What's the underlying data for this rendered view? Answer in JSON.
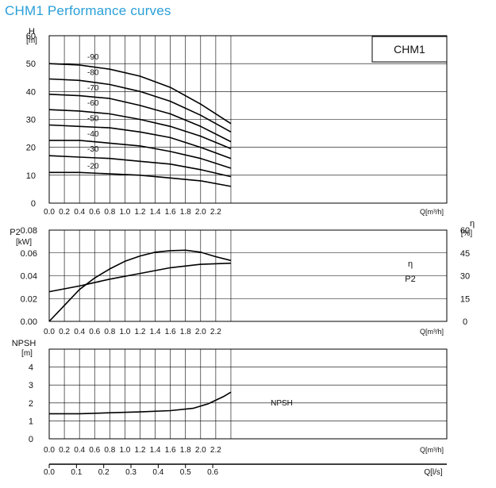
{
  "title": "CHM1 Performance curves",
  "model_label": "CHM1",
  "colors": {
    "title": "#2a9fd8",
    "curve": "#000000",
    "grid": "#000000",
    "axis": "#000000"
  },
  "chart_data": [
    {
      "type": "line",
      "name": "head",
      "ylabel": "H",
      "yunit": "[m]",
      "xlabel": "Q[m³/h]",
      "xlim": [
        0,
        2.4
      ],
      "ylim": [
        0,
        60
      ],
      "x_ticks": [
        "0.0",
        "0.2",
        "0.4",
        "0.6",
        "0.8",
        "1.0",
        "1.2",
        "1.4",
        "1.6",
        "1.8",
        "2.0",
        "2.2"
      ],
      "y_ticks": [
        "0",
        "10",
        "20",
        "30",
        "40",
        "50",
        "60"
      ],
      "grid": true,
      "series": [
        {
          "name": "-90",
          "x": [
            0,
            0.4,
            0.8,
            1.2,
            1.6,
            2.0,
            2.4
          ],
          "y": [
            50,
            49.5,
            48,
            45.5,
            41.5,
            35.5,
            28.5
          ]
        },
        {
          "name": "-80",
          "x": [
            0,
            0.4,
            0.8,
            1.2,
            1.6,
            2.0,
            2.4
          ],
          "y": [
            44.5,
            44,
            42.5,
            40,
            36.5,
            31.5,
            25.5
          ]
        },
        {
          "name": "-70",
          "x": [
            0,
            0.4,
            0.8,
            1.2,
            1.6,
            2.0,
            2.4
          ],
          "y": [
            39,
            38.5,
            37.5,
            35,
            32,
            27.5,
            22
          ]
        },
        {
          "name": "-60",
          "x": [
            0,
            0.4,
            0.8,
            1.2,
            1.6,
            2.0,
            2.4
          ],
          "y": [
            33.5,
            33,
            32,
            30,
            27.5,
            24,
            19.5
          ]
        },
        {
          "name": "-50",
          "x": [
            0,
            0.4,
            0.8,
            1.2,
            1.6,
            2.0,
            2.4
          ],
          "y": [
            28,
            27.5,
            27,
            25.5,
            23.5,
            20,
            16
          ]
        },
        {
          "name": "-40",
          "x": [
            0,
            0.4,
            0.8,
            1.2,
            1.6,
            2.0,
            2.4
          ],
          "y": [
            22.5,
            22.5,
            21.5,
            20.5,
            18.5,
            16,
            12.5
          ]
        },
        {
          "name": "-30",
          "x": [
            0,
            0.4,
            0.8,
            1.2,
            1.6,
            2.0,
            2.4
          ],
          "y": [
            17,
            16.5,
            16,
            15,
            14,
            12,
            9.5
          ]
        },
        {
          "name": "-20",
          "x": [
            0,
            0.4,
            0.8,
            1.2,
            1.6,
            2.0,
            2.4
          ],
          "y": [
            11,
            11,
            10.5,
            10,
            9,
            8,
            6
          ]
        }
      ]
    },
    {
      "type": "line",
      "name": "power-efficiency",
      "ylabel": "P2",
      "yunit": "[kW]",
      "y2label": "η",
      "y2unit": "[%]",
      "xlabel": "Q[m³/h]",
      "xlim": [
        0,
        2.4
      ],
      "ylim": [
        0,
        0.08
      ],
      "y2lim": [
        0,
        60
      ],
      "x_ticks": [
        "0.0",
        "0.2",
        "0.4",
        "0.6",
        "0.8",
        "1.0",
        "1.2",
        "1.4",
        "1.6",
        "1.8",
        "2.0",
        "2.2"
      ],
      "y_ticks": [
        "0.00",
        "0.02",
        "0.04",
        "0.06",
        "0.08"
      ],
      "y2_ticks": [
        "0",
        "15",
        "30",
        "45",
        "60"
      ],
      "grid": true,
      "series": [
        {
          "name": "P2",
          "axis": "left",
          "x": [
            0,
            0.4,
            0.8,
            1.2,
            1.6,
            2.0,
            2.4
          ],
          "y": [
            0.026,
            0.031,
            0.037,
            0.042,
            0.047,
            0.05,
            0.051
          ]
        },
        {
          "name": "η",
          "axis": "right",
          "x": [
            0,
            0.2,
            0.4,
            0.6,
            0.8,
            1.0,
            1.2,
            1.4,
            1.6,
            1.8,
            2.0,
            2.2,
            2.4
          ],
          "y": [
            0,
            10.5,
            21,
            28.5,
            34.5,
            39.5,
            43,
            45.5,
            46.5,
            46.8,
            45.5,
            42.5,
            40
          ]
        }
      ]
    },
    {
      "type": "line",
      "name": "npsh",
      "ylabel": "NPSH",
      "yunit": "[m]",
      "xlabel": "Q[m³/h]",
      "x2label": "Q[l/s]",
      "xlim": [
        0,
        2.4
      ],
      "ylim": [
        0,
        5
      ],
      "x_ticks": [
        "0.0",
        "0.2",
        "0.4",
        "0.6",
        "0.8",
        "1.0",
        "1.2",
        "1.4",
        "1.6",
        "1.8",
        "2.0",
        "2.2"
      ],
      "x2_ticks": [
        "0.0",
        "0.1",
        "0.2",
        "0.3",
        "0.4",
        "0.5",
        "0.6"
      ],
      "y_ticks": [
        "0",
        "1",
        "2",
        "3",
        "4"
      ],
      "grid": true,
      "series": [
        {
          "name": "NPSH",
          "x": [
            0,
            0.4,
            0.8,
            1.2,
            1.6,
            1.9,
            2.1,
            2.3,
            2.4
          ],
          "y": [
            1.4,
            1.4,
            1.45,
            1.5,
            1.57,
            1.7,
            1.95,
            2.35,
            2.6
          ]
        }
      ]
    }
  ]
}
